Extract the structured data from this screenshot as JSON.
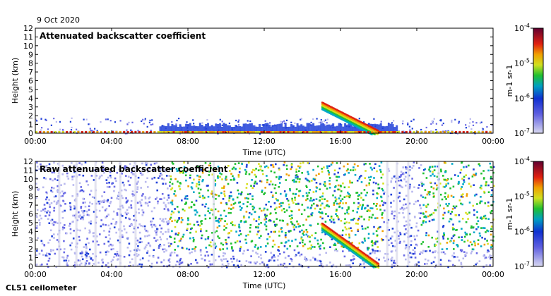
{
  "date_label": "9 Oct 2020",
  "instrument_label": "CL51 ceilometer",
  "chart_data": [
    {
      "type": "heatmap",
      "title": "Attenuated backscatter coefficient",
      "xlabel": "Time (UTC)",
      "ylabel": "Height (km)",
      "x_ticks": [
        "00:00",
        "04:00",
        "08:00",
        "12:00",
        "16:00",
        "20:00",
        "00:00"
      ],
      "y_ticks": [
        "0",
        "1",
        "2",
        "3",
        "4",
        "5",
        "6",
        "7",
        "8",
        "9",
        "10",
        "11",
        "12"
      ],
      "xlim_hours": [
        0,
        24
      ],
      "ylim": [
        0,
        12
      ],
      "colorbar": {
        "label": "m-1 sr-1",
        "ticks": [
          "10-7",
          "10-6",
          "10-5",
          "10-4"
        ],
        "scale": "log"
      },
      "features": [
        {
          "name": "boundary layer",
          "t_start_h": 6.5,
          "t_end_h": 19.0,
          "top_km": 1.2
        },
        {
          "name": "descending cloud",
          "t_start_h": 15.0,
          "t_end_h": 18.0,
          "top_km_start": 3.6,
          "top_km_end": 0.3
        },
        {
          "name": "aerosol near surface",
          "t_start_h": 0.0,
          "t_end_h": 24.0,
          "top_km": 0.3
        }
      ]
    },
    {
      "type": "heatmap",
      "title": "Raw attenuated backscatter coefficient",
      "xlabel": "Time (UTC)",
      "ylabel": "Height (km)",
      "x_ticks": [
        "00:00",
        "04:00",
        "08:00",
        "12:00",
        "16:00",
        "20:00",
        "00:00"
      ],
      "y_ticks": [
        "0",
        "1",
        "2",
        "3",
        "4",
        "5",
        "6",
        "7",
        "8",
        "9",
        "10",
        "11",
        "12"
      ],
      "xlim_hours": [
        0,
        24
      ],
      "ylim": [
        0,
        12
      ],
      "colorbar": {
        "label": "m-1 sr-1",
        "ticks": [
          "10-7",
          "10-6",
          "10-5",
          "10-4"
        ],
        "scale": "log"
      },
      "features": [
        {
          "name": "daytime solar noise",
          "t_start_h": 7.0,
          "t_end_h": 24.0,
          "min_km": 2.0
        },
        {
          "name": "descending cloud",
          "t_start_h": 15.0,
          "t_end_h": 18.0,
          "top_km_start": 5.0,
          "top_km_end": 0.3
        }
      ]
    }
  ]
}
